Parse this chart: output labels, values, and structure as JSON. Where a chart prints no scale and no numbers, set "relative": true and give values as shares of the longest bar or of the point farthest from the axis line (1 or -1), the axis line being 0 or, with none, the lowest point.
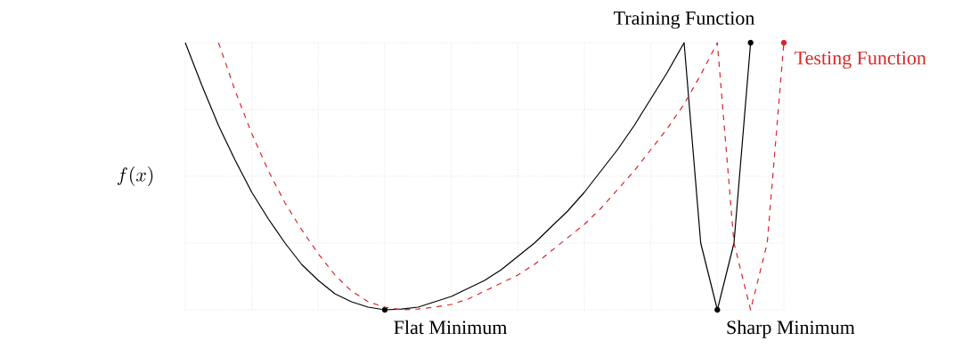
{
  "chart_data": {
    "type": "line",
    "relative": true,
    "ylabel": "f(x)",
    "grid": true,
    "categories": [
      null,
      null,
      null,
      null,
      null,
      null,
      null,
      null,
      null,
      null,
      null,
      null,
      null,
      null,
      null,
      null,
      null,
      null,
      null,
      null,
      null,
      null,
      null,
      null,
      null,
      null,
      null,
      null,
      null,
      null,
      null,
      null,
      null,
      null,
      null,
      null,
      null
    ],
    "series": [
      {
        "name": "Training Function",
        "color": "#000000",
        "line_style": "solid",
        "values": [
          1,
          0.84,
          0.69,
          0.56,
          0.44,
          0.34,
          0.25,
          0.17,
          0.11,
          0.06,
          0.03,
          0.01,
          0,
          0.003,
          0.01,
          0.03,
          0.05,
          0.08,
          0.11,
          0.15,
          0.2,
          0.25,
          0.31,
          0.37,
          0.44,
          0.52,
          0.6,
          0.69,
          0.79,
          0.89,
          1,
          0.25,
          0,
          0.25,
          1,
          null,
          null
        ]
      },
      {
        "name": "Testing Function",
        "color": "#d62728",
        "line_style": "dashed",
        "values": [
          null,
          null,
          1,
          0.82,
          0.66,
          0.52,
          0.4,
          0.3,
          0.21,
          0.13,
          0.07,
          0.03,
          0.01,
          0,
          0.003,
          0.01,
          0.02,
          0.04,
          0.07,
          0.1,
          0.13,
          0.17,
          0.22,
          0.27,
          0.32,
          0.38,
          0.45,
          0.52,
          0.6,
          0.68,
          0.77,
          0.88,
          1,
          0.25,
          0,
          0.25,
          1
        ]
      }
    ],
    "annotations": [
      "Flat Minimum",
      "Sharp Minimum"
    ]
  }
}
